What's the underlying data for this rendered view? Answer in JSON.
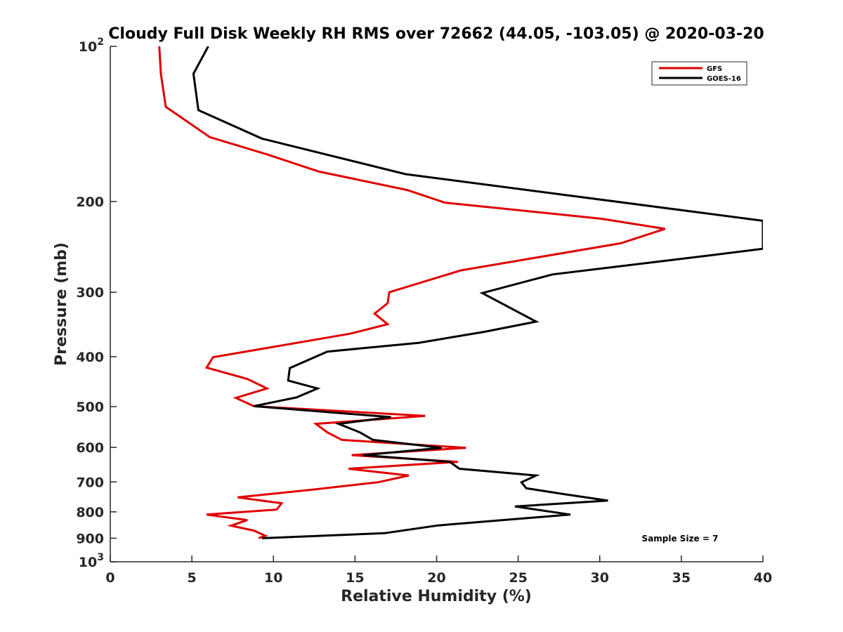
{
  "chart_data": {
    "type": "line",
    "title": "Cloudy Full Disk Weekly RH RMS over 72662 (44.05, -103.05) @ 2020-03-20",
    "xlabel": "Relative Humidity (%)",
    "ylabel": "Pressure (mb)",
    "xlim": [
      0,
      40
    ],
    "ylim": [
      100,
      1000
    ],
    "y_scale": "log",
    "y_reversed": true,
    "x_ticks": [
      {
        "value": 0,
        "label": "0"
      },
      {
        "value": 5,
        "label": "5"
      },
      {
        "value": 10,
        "label": "10"
      },
      {
        "value": 15,
        "label": "15"
      },
      {
        "value": 20,
        "label": "20"
      },
      {
        "value": 25,
        "label": "25"
      },
      {
        "value": 30,
        "label": "30"
      },
      {
        "value": 35,
        "label": "35"
      },
      {
        "value": 40,
        "label": "40"
      }
    ],
    "y_ticks": [
      {
        "value": 100,
        "label": "10",
        "exp": "2"
      },
      {
        "value": 200,
        "label": "200",
        "exp": ""
      },
      {
        "value": 300,
        "label": "300",
        "exp": ""
      },
      {
        "value": 400,
        "label": "400",
        "exp": ""
      },
      {
        "value": 500,
        "label": "500",
        "exp": ""
      },
      {
        "value": 600,
        "label": "600",
        "exp": ""
      },
      {
        "value": 700,
        "label": "700",
        "exp": ""
      },
      {
        "value": 800,
        "label": "800",
        "exp": ""
      },
      {
        "value": 900,
        "label": "900",
        "exp": ""
      },
      {
        "value": 1000,
        "label": "10",
        "exp": "3"
      }
    ],
    "grid": false,
    "legend_position": "top-right",
    "annotation": "Sample Size = 7",
    "series": [
      {
        "name": "GFS",
        "color": "#e00000",
        "points": [
          [
            3.0,
            100
          ],
          [
            3.1,
            113
          ],
          [
            3.4,
            131
          ],
          [
            6.1,
            150
          ],
          [
            9.6,
            162
          ],
          [
            12.8,
            175
          ],
          [
            18.2,
            190
          ],
          [
            20.5,
            201
          ],
          [
            30.1,
            216
          ],
          [
            34.0,
            226
          ],
          [
            31.3,
            241
          ],
          [
            21.5,
            272
          ],
          [
            17.1,
            300
          ],
          [
            17.0,
            315
          ],
          [
            16.2,
            330
          ],
          [
            17.0,
            346
          ],
          [
            14.7,
            361
          ],
          [
            6.3,
            401
          ],
          [
            5.9,
            420
          ],
          [
            8.4,
            442
          ],
          [
            9.6,
            461
          ],
          [
            7.7,
            481
          ],
          [
            8.8,
            499
          ],
          [
            19.3,
            521
          ],
          [
            12.6,
            540
          ],
          [
            13.3,
            561
          ],
          [
            14.2,
            580
          ],
          [
            21.8,
            601
          ],
          [
            14.8,
            621
          ],
          [
            21.3,
            640
          ],
          [
            14.6,
            660
          ],
          [
            18.3,
            680
          ],
          [
            16.4,
            701
          ],
          [
            12.3,
            725
          ],
          [
            7.8,
            750
          ],
          [
            10.5,
            770
          ],
          [
            10.2,
            792
          ],
          [
            5.9,
            810
          ],
          [
            8.4,
            830
          ],
          [
            7.4,
            851
          ],
          [
            8.8,
            870
          ],
          [
            9.5,
            890
          ],
          [
            9.1,
            900
          ]
        ]
      },
      {
        "name": "GOES-16",
        "color": "#000000",
        "points": [
          [
            6.0,
            100
          ],
          [
            5.1,
            113
          ],
          [
            5.4,
            133
          ],
          [
            9.3,
            151
          ],
          [
            18.1,
            177
          ],
          [
            40.0,
            218
          ],
          [
            40.0,
            247
          ],
          [
            36.5,
            255
          ],
          [
            27.1,
            277
          ],
          [
            22.8,
            301
          ],
          [
            26.1,
            342
          ],
          [
            22.9,
            358
          ],
          [
            18.9,
            376
          ],
          [
            13.3,
            391
          ],
          [
            11.0,
            421
          ],
          [
            10.9,
            445
          ],
          [
            12.7,
            461
          ],
          [
            11.4,
            480
          ],
          [
            8.8,
            499
          ],
          [
            17.2,
            524
          ],
          [
            14.0,
            540
          ],
          [
            15.3,
            561
          ],
          [
            16.1,
            580
          ],
          [
            20.3,
            601
          ],
          [
            15.5,
            621
          ],
          [
            20.8,
            640
          ],
          [
            21.4,
            660
          ],
          [
            26.1,
            680
          ],
          [
            25.2,
            701
          ],
          [
            25.5,
            720
          ],
          [
            27.9,
            740
          ],
          [
            30.5,
            761
          ],
          [
            24.8,
            781
          ],
          [
            28.2,
            810
          ],
          [
            20.1,
            850
          ],
          [
            16.8,
            880
          ],
          [
            9.3,
            900
          ]
        ]
      }
    ]
  }
}
